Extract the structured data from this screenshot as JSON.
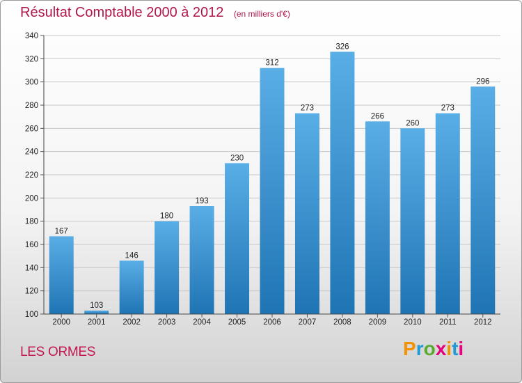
{
  "title": "Résultat Comptable 2000 à 2012",
  "unit": "(en milliers d'€)",
  "location": "LES ORMES",
  "brand": {
    "text": "Proxiti",
    "letters": [
      "P",
      "r",
      "o",
      "x",
      "i",
      "t",
      "i"
    ],
    "colors": [
      "#f39200",
      "#1f9ad6",
      "#5aaa32",
      "#e6007e",
      "#f39200",
      "#1f9ad6",
      "#e6007e"
    ]
  },
  "colors": {
    "bar_top": "#5aaee6",
    "bar_bottom": "#1f74b4",
    "title": "#b0174a"
  },
  "chart_data": {
    "type": "bar",
    "title": "Résultat Comptable 2000 à 2012",
    "xlabel": "",
    "ylabel": "",
    "categories": [
      "2000",
      "2001",
      "2002",
      "2003",
      "2004",
      "2005",
      "2006",
      "2007",
      "2008",
      "2009",
      "2010",
      "2011",
      "2012"
    ],
    "values": [
      167,
      103,
      146,
      180,
      193,
      230,
      312,
      273,
      326,
      266,
      260,
      273,
      296
    ],
    "value_labels": [
      "167",
      "103",
      "146",
      "180",
      "193",
      "230",
      "312",
      "273",
      "326",
      "266",
      "260",
      "273",
      "296"
    ],
    "ylim": [
      100,
      340
    ],
    "yticks": [
      100,
      120,
      140,
      160,
      180,
      200,
      220,
      240,
      260,
      280,
      300,
      320,
      340
    ],
    "ytick_labels": [
      "100",
      "120",
      "140",
      "160",
      "180",
      "200",
      "220",
      "240",
      "260",
      "280",
      "300",
      "320",
      "340"
    ],
    "grid": true
  }
}
